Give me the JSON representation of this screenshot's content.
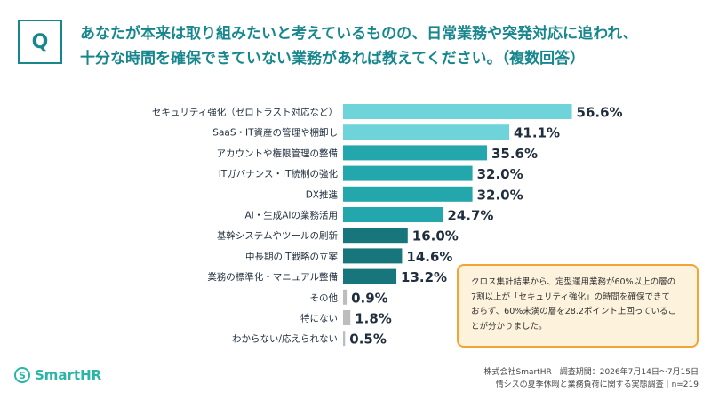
{
  "header": {
    "badge": "Q",
    "question_line1": "あなたが本来は取り組みたいと考えているものの、日常業務や突発対応に追われ、",
    "question_line2": "十分な時間を確保できていない業務があれば教えてください。（複数回答）"
  },
  "chart_data": {
    "type": "bar",
    "orientation": "horizontal",
    "categories": [
      "セキュリティ強化（ゼロトラスト対応など）",
      "SaaS・IT資産の管理や棚卸し",
      "アカウントや権限管理の整備",
      "ITガバナンス・IT統制の強化",
      "DX推進",
      "AI・生成AIの業務活用",
      "基幹システムやツールの刷新",
      "中長期のIT戦略の立案",
      "業務の標準化・マニュアル整備",
      "その他",
      "特にない",
      "わからない/応えられない"
    ],
    "values": [
      56.6,
      41.1,
      35.6,
      32.0,
      32.0,
      24.7,
      16.0,
      14.6,
      13.2,
      0.9,
      1.8,
      0.5
    ],
    "value_labels": [
      "56.6%",
      "41.1%",
      "35.6%",
      "32.0%",
      "32.0%",
      "24.7%",
      "16.0%",
      "14.6%",
      "13.2%",
      "0.9%",
      "1.8%",
      "0.5%"
    ],
    "bar_colors": [
      "#6fd3da",
      "#6fd3da",
      "#24a6ad",
      "#24a6ad",
      "#24a6ad",
      "#24a6ad",
      "#17767c",
      "#17767c",
      "#17767c",
      "#bdbdbd",
      "#bdbdbd",
      "#bdbdbd"
    ],
    "xlim": [
      0,
      60
    ],
    "grid": false,
    "legend": "none"
  },
  "note": {
    "line1": "クロス集計結果から、定型運用業務が60%以上の層の",
    "line2": "7割以上が「セキュリティ強化」の時間を確保できて",
    "line3": "おらず、60%未満の層を28.2ポイント上回っているこ",
    "line4": "とが分かりました。"
  },
  "footer": {
    "line1": "株式会社SmartHR　調査期間：2026年7月14日〜7月15日",
    "line2": "情シスの夏季休暇と業務負荷に関する実態調査｜n=219"
  },
  "logo": {
    "text": "SmartHR",
    "icon": "smarthr-logo-icon",
    "color": "#29b5a8"
  },
  "colors": {
    "accent": "#17878e",
    "note_border": "#f2a533",
    "note_bg": "#fdf3dc"
  }
}
